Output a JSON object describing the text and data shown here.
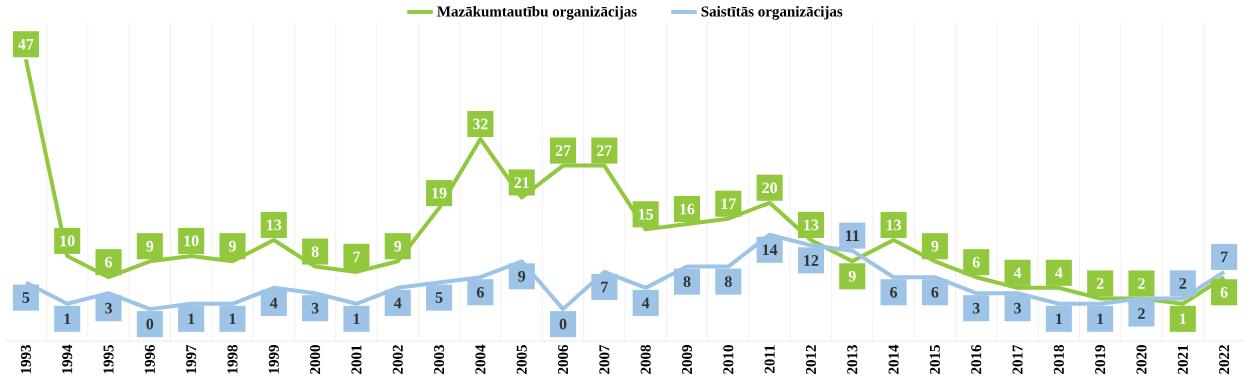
{
  "chart_data": {
    "type": "line",
    "categories": [
      "1993",
      "1994",
      "1995",
      "1996",
      "1997",
      "1998",
      "1999",
      "2000",
      "2001",
      "2002",
      "2003",
      "2004",
      "2005",
      "2006",
      "2007",
      "2008",
      "2009",
      "2010",
      "2011",
      "2012",
      "2013",
      "2014",
      "2015",
      "2016",
      "2017",
      "2018",
      "2019",
      "2020",
      "2021",
      "2022"
    ],
    "series": [
      {
        "name": "Mazākumtautību organizācijas",
        "color": "#92c83e",
        "values": [
          47,
          10,
          6,
          9,
          10,
          9,
          13,
          8,
          7,
          9,
          19,
          32,
          21,
          27,
          27,
          15,
          16,
          17,
          20,
          13,
          9,
          13,
          9,
          6,
          4,
          4,
          2,
          2,
          1,
          6
        ]
      },
      {
        "name": "Saistītās organizācijas",
        "color": "#9dc3e6",
        "values": [
          5,
          1,
          3,
          0,
          1,
          1,
          4,
          3,
          1,
          4,
          5,
          6,
          9,
          0,
          7,
          4,
          8,
          8,
          14,
          12,
          11,
          6,
          6,
          3,
          3,
          1,
          1,
          2,
          2,
          7
        ]
      }
    ],
    "ylim": [
      -6,
      54
    ],
    "data_labels": true,
    "grid": "x",
    "legend": "top",
    "marker": "none",
    "line_style": "solid",
    "tick_labels": "x"
  }
}
